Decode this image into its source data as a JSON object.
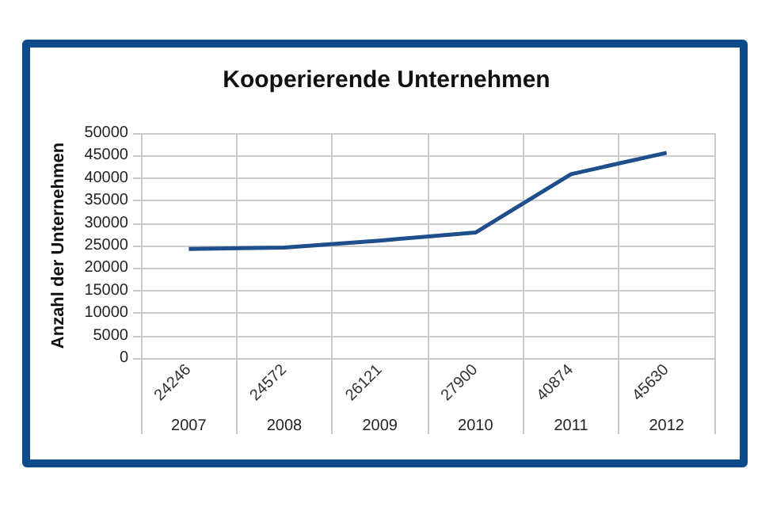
{
  "chart_data": {
    "type": "line",
    "title": "Kooperierende Unternehmen",
    "ylabel": "Anzahl der Unternehmen",
    "categories": [
      "2007",
      "2008",
      "2009",
      "2010",
      "2011",
      "2012"
    ],
    "series": [
      {
        "color": "#1f4e8c",
        "values": [
          24246,
          24572,
          26121,
          27900,
          40874,
          45630
        ]
      }
    ],
    "ylim": [
      0,
      50000
    ],
    "yticks": [
      0,
      5000,
      10000,
      15000,
      20000,
      25000,
      30000,
      35000,
      40000,
      45000,
      50000
    ],
    "grid": true,
    "marker": "none",
    "line_style": "solid",
    "data_labels": true
  }
}
